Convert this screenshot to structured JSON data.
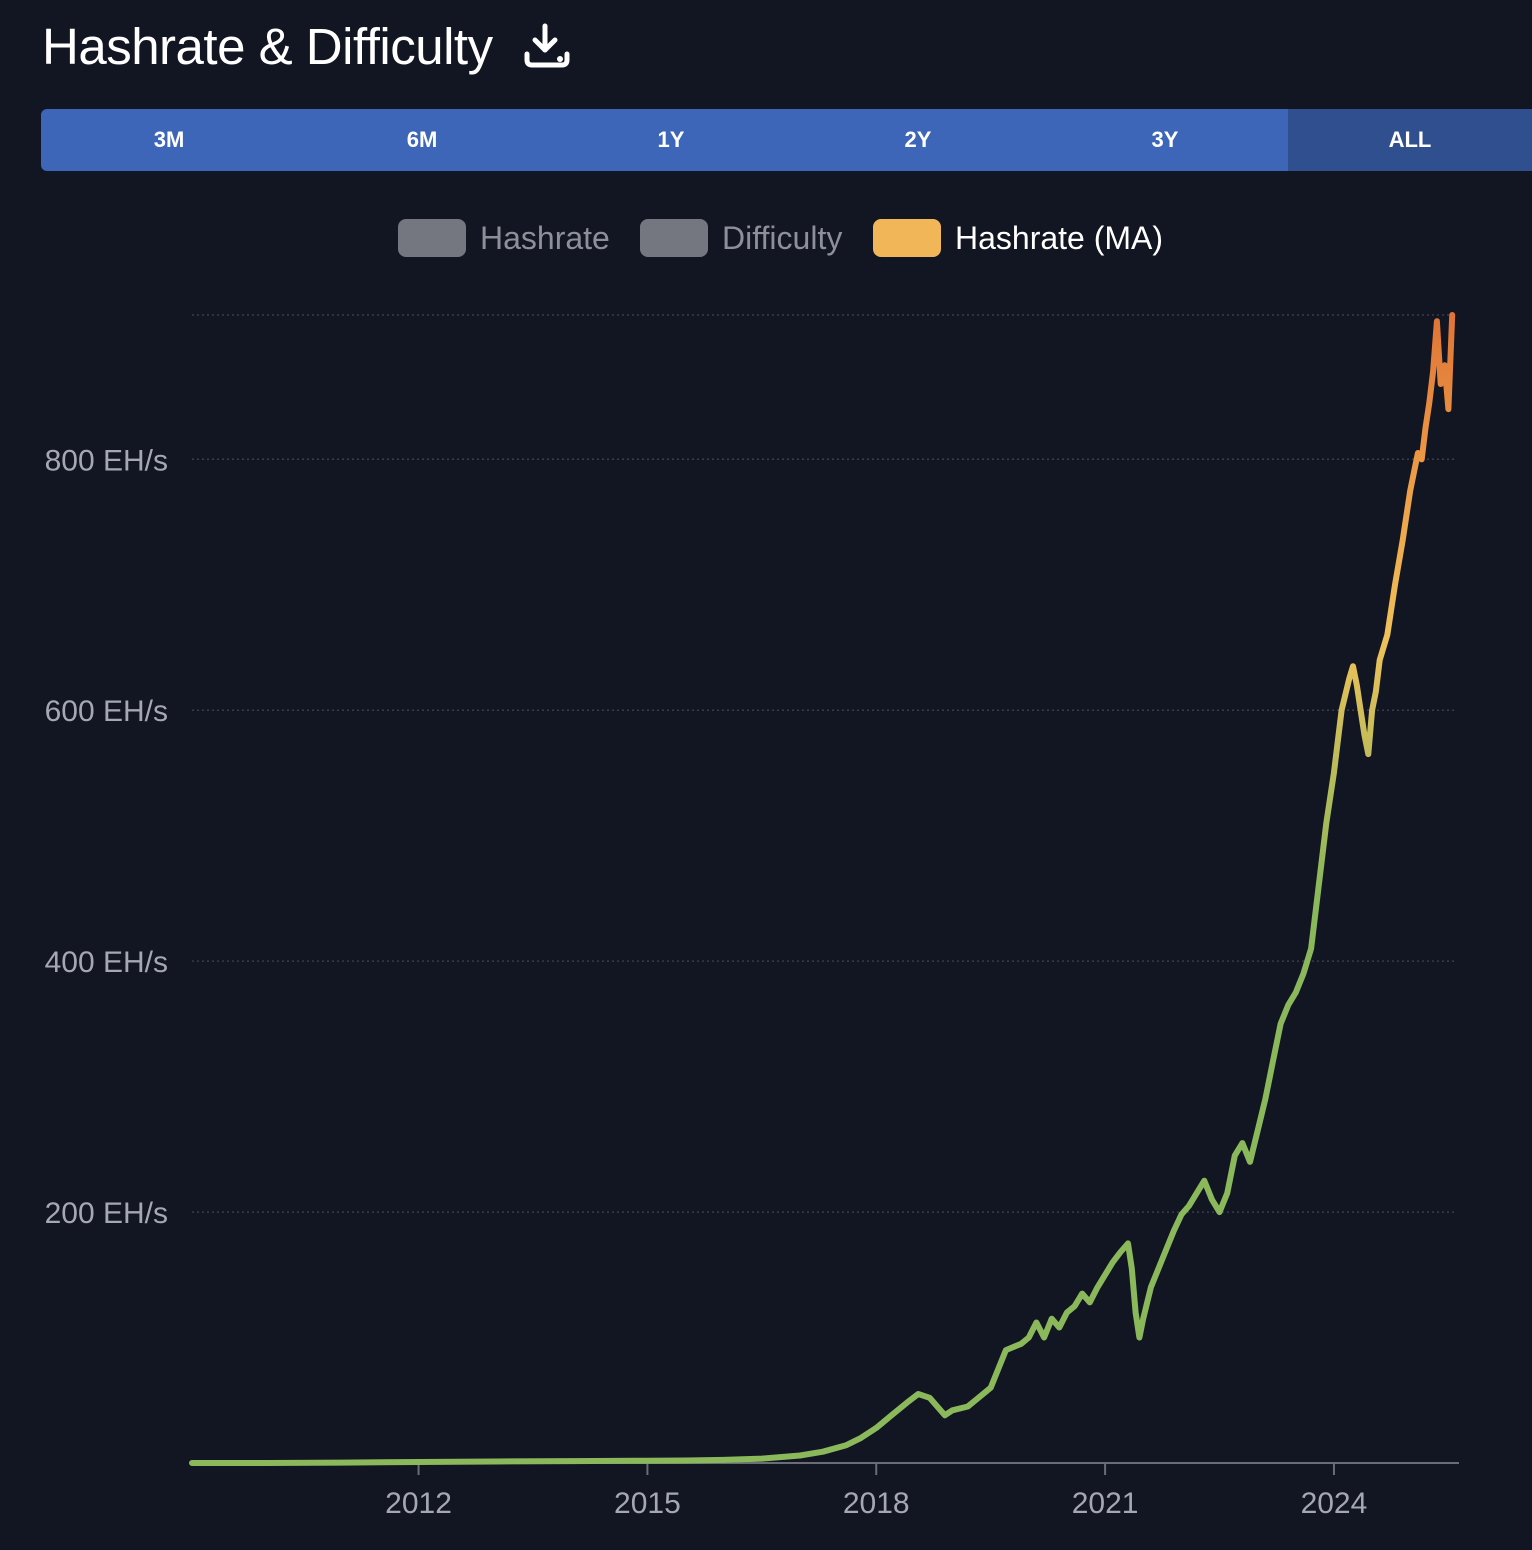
{
  "header": {
    "title": "Hashrate & Difficulty",
    "download_icon": "download-icon"
  },
  "range_selector": {
    "buttons": [
      "3M",
      "6M",
      "1Y",
      "2Y",
      "3Y",
      "ALL"
    ],
    "active": "ALL"
  },
  "legend": [
    {
      "label": "Hashrate",
      "color": "#74777f",
      "active": false
    },
    {
      "label": "Difficulty",
      "color": "#74777f",
      "active": false
    },
    {
      "label": "Hashrate (MA)",
      "color": "#f0b658",
      "active": true
    }
  ],
  "colors": {
    "background": "#121522",
    "range_bar": "#3d65b8",
    "range_active": "#2f4f8e",
    "line_low": "#8ab85a",
    "line_mid": "#f0c15a",
    "line_high": "#e07437",
    "inactive_text": "#8d9099",
    "axis_text": "#a5a8b2"
  },
  "chart_data": {
    "type": "line",
    "title": "Hashrate & Difficulty",
    "xlabel": "",
    "ylabel": "",
    "y_unit": "EH/s",
    "ylim": [
      0,
      915
    ],
    "xlim": [
      2009.03,
      2025.6
    ],
    "y_ticks": [
      200,
      400,
      600,
      800
    ],
    "y_tick_labels": [
      "200 EH/s",
      "400 EH/s",
      "600 EH/s",
      "800 EH/s"
    ],
    "x_ticks": [
      2012,
      2015,
      2018,
      2021,
      2024
    ],
    "x_tick_labels": [
      "2012",
      "2015",
      "2018",
      "2021",
      "2024"
    ],
    "grid": true,
    "legend_position": "top-center",
    "series": [
      {
        "name": "Hashrate (MA)",
        "x": [
          2009.03,
          2010,
          2011,
          2012,
          2013,
          2014,
          2015,
          2015.5,
          2016,
          2016.5,
          2017,
          2017.3,
          2017.6,
          2017.8,
          2018,
          2018.2,
          2018.4,
          2018.55,
          2018.7,
          2018.9,
          2019,
          2019.2,
          2019.3,
          2019.5,
          2019.6,
          2019.7,
          2019.9,
          2020,
          2020.1,
          2020.2,
          2020.3,
          2020.4,
          2020.5,
          2020.6,
          2020.7,
          2020.8,
          2020.9,
          2021,
          2021.1,
          2021.2,
          2021.3,
          2021.35,
          2021.4,
          2021.45,
          2021.5,
          2021.6,
          2021.7,
          2021.8,
          2021.9,
          2022,
          2022.1,
          2022.2,
          2022.3,
          2022.4,
          2022.5,
          2022.6,
          2022.7,
          2022.8,
          2022.9,
          2023,
          2023.1,
          2023.2,
          2023.3,
          2023.4,
          2023.5,
          2023.6,
          2023.7,
          2023.8,
          2023.9,
          2024,
          2024.1,
          2024.2,
          2024.25,
          2024.3,
          2024.35,
          2024.4,
          2024.45,
          2024.5,
          2024.55,
          2024.6,
          2024.7,
          2024.8,
          2024.9,
          2025,
          2025.1,
          2025.15,
          2025.2,
          2025.25,
          2025.3,
          2025.35,
          2025.4,
          2025.45,
          2025.5,
          2025.55
        ],
        "values": [
          0,
          0,
          0.3,
          0.8,
          1.2,
          1.5,
          1.8,
          2,
          2.5,
          3.5,
          6,
          9,
          14,
          20,
          28,
          38,
          48,
          55,
          52,
          38,
          42,
          45,
          50,
          60,
          75,
          90,
          95,
          100,
          112,
          100,
          115,
          108,
          120,
          125,
          135,
          128,
          140,
          150,
          160,
          168,
          175,
          155,
          120,
          100,
          115,
          140,
          155,
          170,
          185,
          198,
          205,
          215,
          225,
          210,
          200,
          215,
          245,
          255,
          240,
          265,
          290,
          320,
          350,
          365,
          375,
          390,
          410,
          460,
          510,
          550,
          600,
          625,
          635,
          620,
          600,
          580,
          565,
          600,
          615,
          640,
          660,
          700,
          735,
          775,
          805,
          800,
          825,
          845,
          870,
          910,
          860,
          875,
          840,
          915
        ]
      }
    ]
  }
}
